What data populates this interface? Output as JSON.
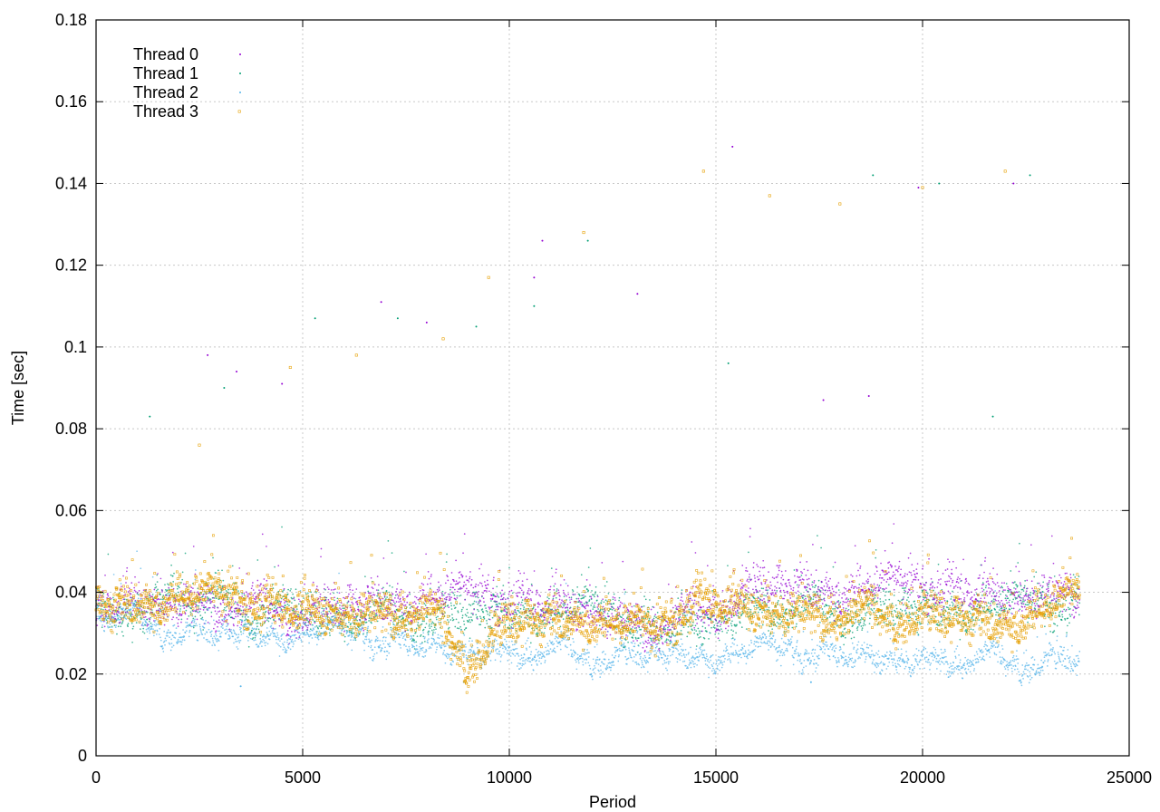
{
  "chart_data": {
    "type": "scatter",
    "xlabel": "Period",
    "ylabel": "Time [sec]",
    "xlim": [
      0,
      25000
    ],
    "ylim": [
      0,
      0.18
    ],
    "xticks": [
      "0",
      "5000",
      "10000",
      "15000",
      "20000",
      "25000"
    ],
    "yticks": [
      "0",
      "0.02",
      "0.04",
      "0.06",
      "0.08",
      "0.1",
      "0.12",
      "0.14",
      "0.16",
      "0.18"
    ],
    "grid": true,
    "legend_position": "top-left",
    "x_extent": 23800,
    "series": [
      {
        "name": "Thread 0",
        "color": "#9400d3",
        "marker": "dot",
        "profile": [
          [
            0,
            0.038
          ],
          [
            2000,
            0.039
          ],
          [
            5000,
            0.037
          ],
          [
            8000,
            0.039
          ],
          [
            10000,
            0.038
          ],
          [
            12000,
            0.037
          ],
          [
            13500,
            0.033
          ],
          [
            14500,
            0.036
          ],
          [
            16000,
            0.043
          ],
          [
            18000,
            0.041
          ],
          [
            20000,
            0.041
          ],
          [
            22000,
            0.04
          ],
          [
            23800,
            0.042
          ]
        ],
        "outliers": [
          [
            2700,
            0.098
          ],
          [
            3400,
            0.094
          ],
          [
            4500,
            0.091
          ],
          [
            6900,
            0.111
          ],
          [
            8000,
            0.106
          ],
          [
            10600,
            0.117
          ],
          [
            10800,
            0.126
          ],
          [
            13100,
            0.113
          ],
          [
            15400,
            0.149
          ],
          [
            17600,
            0.087
          ],
          [
            18700,
            0.088
          ],
          [
            19900,
            0.139
          ],
          [
            22200,
            0.14
          ]
        ]
      },
      {
        "name": "Thread 1",
        "color": "#009e73",
        "marker": "dot",
        "profile": [
          [
            0,
            0.036
          ],
          [
            2000,
            0.037
          ],
          [
            5000,
            0.036
          ],
          [
            8000,
            0.036
          ],
          [
            10000,
            0.036
          ],
          [
            12000,
            0.035
          ],
          [
            13500,
            0.031
          ],
          [
            14500,
            0.033
          ],
          [
            16000,
            0.038
          ],
          [
            18000,
            0.037
          ],
          [
            20000,
            0.037
          ],
          [
            22000,
            0.036
          ],
          [
            23800,
            0.037
          ]
        ],
        "outliers": [
          [
            1300,
            0.083
          ],
          [
            3100,
            0.09
          ],
          [
            5300,
            0.107
          ],
          [
            7300,
            0.107
          ],
          [
            9200,
            0.105
          ],
          [
            10600,
            0.11
          ],
          [
            11900,
            0.126
          ],
          [
            15300,
            0.096
          ],
          [
            18800,
            0.142
          ],
          [
            20400,
            0.14
          ],
          [
            21700,
            0.083
          ],
          [
            22600,
            0.142
          ]
        ]
      },
      {
        "name": "Thread 2",
        "color": "#56b4e9",
        "marker": "dot",
        "profile": [
          [
            0,
            0.034
          ],
          [
            1000,
            0.034
          ],
          [
            3000,
            0.031
          ],
          [
            5000,
            0.03
          ],
          [
            7000,
            0.028
          ],
          [
            9000,
            0.027
          ],
          [
            11000,
            0.027
          ],
          [
            13000,
            0.026
          ],
          [
            15000,
            0.025
          ],
          [
            17000,
            0.025
          ],
          [
            19000,
            0.025
          ],
          [
            21000,
            0.025
          ],
          [
            23800,
            0.025
          ]
        ],
        "outliers": [
          [
            3500,
            0.017
          ],
          [
            8900,
            0.018
          ],
          [
            17300,
            0.018
          ]
        ]
      },
      {
        "name": "Thread 3",
        "color": "#e69f00",
        "marker": "square",
        "profile": [
          [
            0,
            0.037
          ],
          [
            2000,
            0.039
          ],
          [
            5000,
            0.036
          ],
          [
            8000,
            0.037
          ],
          [
            9000,
            0.025
          ],
          [
            10000,
            0.034
          ],
          [
            12000,
            0.034
          ],
          [
            13500,
            0.029
          ],
          [
            14500,
            0.038
          ],
          [
            16000,
            0.037
          ],
          [
            18000,
            0.036
          ],
          [
            20000,
            0.036
          ],
          [
            22000,
            0.033
          ],
          [
            23800,
            0.038
          ]
        ],
        "outliers": [
          [
            2500,
            0.076
          ],
          [
            4700,
            0.095
          ],
          [
            6300,
            0.098
          ],
          [
            8400,
            0.102
          ],
          [
            9500,
            0.117
          ],
          [
            11800,
            0.128
          ],
          [
            14700,
            0.143
          ],
          [
            16300,
            0.137
          ],
          [
            18000,
            0.135
          ],
          [
            20000,
            0.139
          ],
          [
            22000,
            0.143
          ]
        ]
      }
    ]
  }
}
